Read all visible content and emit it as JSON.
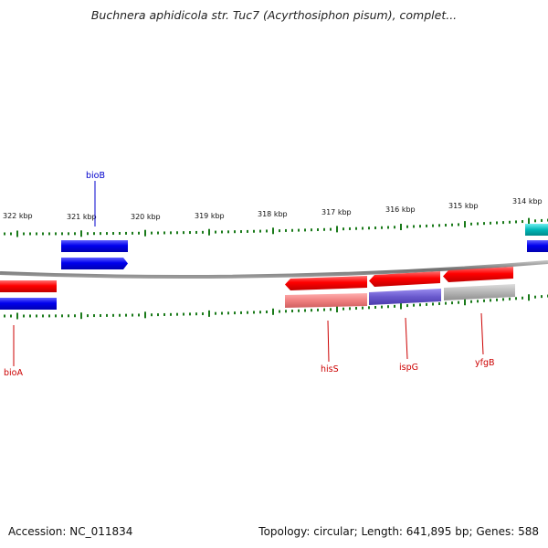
{
  "title": "Buchnera aphidicola str. Tuc7 (Acyrthosiphon pisum), complet...",
  "footer": {
    "accession": "Accession: NC_011834",
    "summary": "Topology: circular; Length: 641,895 bp; Genes: 588"
  },
  "scale": {
    "labels": [
      "322 kbp",
      "321 kbp",
      "320 kbp",
      "319 kbp",
      "318 kbp",
      "317 kbp",
      "316 kbp",
      "315 kbp",
      "314 kbp"
    ]
  },
  "genes": {
    "bioB": "bioB",
    "bioA": "bioA",
    "hisS": "hisS",
    "ispG": "ispG",
    "yfgB": "yfgB"
  },
  "colors": {
    "forward_strand": "#ff0000",
    "reverse_strand": "#0000ee",
    "cds_light": "#f08080",
    "cds_purple": "#6a5acd",
    "cds_gray": "#b5b5b5",
    "rrna": "#00b8b8",
    "tick": "#1a7a1a",
    "backbone": "#777777",
    "label_red": "#cc0000",
    "label_blue": "#0000cc"
  }
}
